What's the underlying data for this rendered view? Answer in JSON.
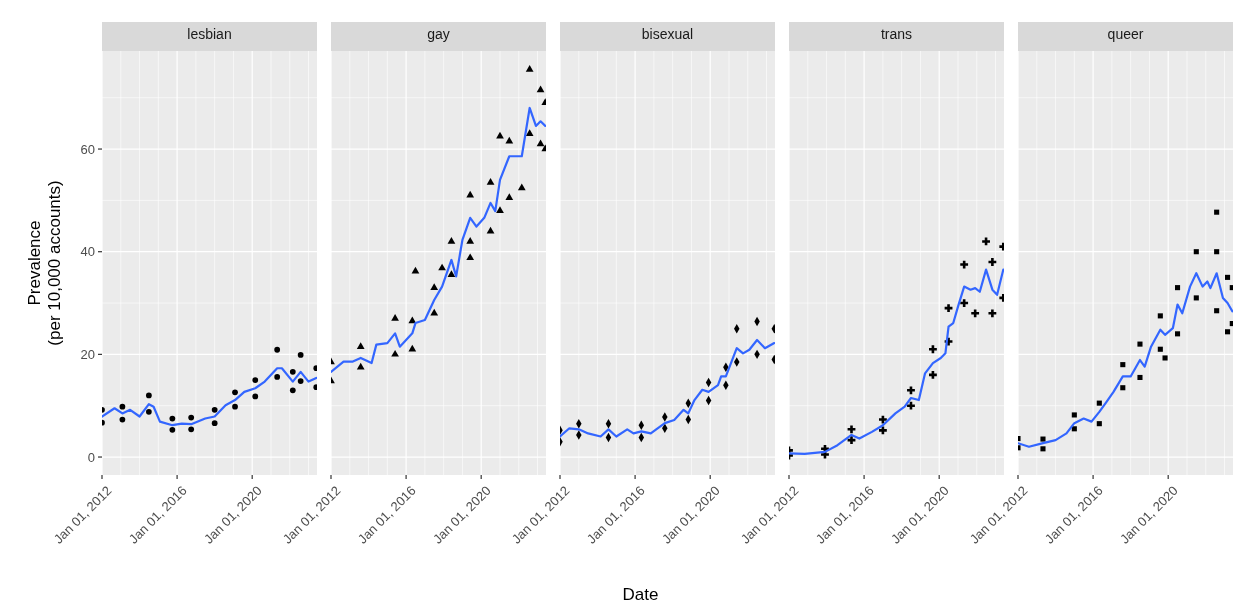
{
  "chart_data": [
    {
      "type": "scatter",
      "title": "lesbian",
      "ylabel": "Prevalence\n(per 10,000 accounts)",
      "grid": true,
      "xlim": [
        "2012-01-01",
        "2023-06-15"
      ],
      "xticks": [
        {
          "value": "2012-01-01",
          "label": "Jan 01, 2012"
        },
        {
          "value": "2013-01-01",
          "label": null
        },
        {
          "value": "2014-01-01",
          "label": null
        },
        {
          "value": "2015-01-01",
          "label": null
        },
        {
          "value": "2016-01-01",
          "label": "Jan 01, 2016"
        },
        {
          "value": "2017-01-01",
          "label": null
        },
        {
          "value": "2018-01-01",
          "label": null
        },
        {
          "value": "2019-01-01",
          "label": null
        },
        {
          "value": "2020-01-01",
          "label": "Jan 01, 2020"
        },
        {
          "value": "2021-01-01",
          "label": null
        },
        {
          "value": "2022-01-01",
          "label": null
        },
        {
          "value": "2023-01-01",
          "label": null
        }
      ],
      "ylim": [
        -3.5,
        79.1
      ],
      "yticks": [
        0,
        {
          "value": 10,
          "label": null
        },
        20,
        {
          "value": 30,
          "label": null
        },
        40,
        {
          "value": 50,
          "label": null
        },
        60,
        {
          "value": 70,
          "label": null
        }
      ],
      "series": [
        {
          "type": "scatter",
          "marker": "circle",
          "color": "#000000",
          "x": [
            "2012-01",
            "2012-01",
            "2013-02",
            "2013-02",
            "2014-07",
            "2014-07",
            "2015-10",
            "2015-10",
            "2016-10",
            "2016-10",
            "2018-01",
            "2018-01",
            "2019-02",
            "2019-02",
            "2020-03",
            "2020-03",
            "2021-05",
            "2021-05",
            "2022-03",
            "2022-03",
            "2022-08",
            "2022-08",
            "2023-06",
            "2023-06"
          ],
          "values": [
            9.2,
            6.7,
            9.8,
            7.3,
            12.0,
            8.8,
            7.5,
            5.3,
            7.7,
            5.4,
            9.2,
            6.6,
            12.6,
            9.8,
            15.0,
            11.8,
            20.9,
            15.6,
            16.6,
            13.0,
            19.9,
            14.8,
            17.3,
            13.6
          ]
        },
        {
          "type": "line",
          "color": "#3366ff",
          "x": [
            "2012-01",
            "2012-09",
            "2013-02",
            "2013-07",
            "2014-01",
            "2014-07",
            "2014-10",
            "2015-02",
            "2015-10",
            "2016-04",
            "2016-10",
            "2017-07",
            "2018-01",
            "2018-08",
            "2019-02",
            "2019-08",
            "2020-03",
            "2020-09",
            "2021-05",
            "2021-08",
            "2022-03",
            "2022-08",
            "2023-01",
            "2023-06"
          ],
          "values": [
            7.9,
            9.5,
            8.5,
            9.2,
            7.9,
            10.3,
            9.8,
            6.9,
            6.2,
            6.5,
            6.4,
            7.5,
            7.9,
            10.1,
            11.1,
            12.7,
            13.4,
            14.7,
            17.3,
            17.3,
            14.7,
            16.6,
            14.7,
            15.4
          ]
        }
      ]
    },
    {
      "type": "scatter",
      "title": "gay",
      "grid": true,
      "tick_labels": "x",
      "xlim": [
        "2012-01-01",
        "2023-06-15"
      ],
      "xticks": [
        {
          "value": "2012-01-01",
          "label": "Jan 01, 2012"
        },
        {
          "value": "2013-01-01",
          "label": null
        },
        {
          "value": "2014-01-01",
          "label": null
        },
        {
          "value": "2015-01-01",
          "label": null
        },
        {
          "value": "2016-01-01",
          "label": "Jan 01, 2016"
        },
        {
          "value": "2017-01-01",
          "label": null
        },
        {
          "value": "2018-01-01",
          "label": null
        },
        {
          "value": "2019-01-01",
          "label": null
        },
        {
          "value": "2020-01-01",
          "label": "Jan 01, 2020"
        },
        {
          "value": "2021-01-01",
          "label": null
        },
        {
          "value": "2022-01-01",
          "label": null
        },
        {
          "value": "2023-01-01",
          "label": null
        }
      ],
      "ylim": [
        -3.5,
        79.1
      ],
      "yticks": [
        0,
        {
          "value": 10,
          "label": null
        },
        20,
        {
          "value": 30,
          "label": null
        },
        40,
        {
          "value": 50,
          "label": null
        },
        60,
        {
          "value": 70,
          "label": null
        }
      ],
      "series": [
        {
          "type": "scatter",
          "marker": "triangle",
          "color": "#000000",
          "x": [
            "2012-01",
            "2012-01",
            "2013-08",
            "2013-08",
            "2015-06",
            "2015-06",
            "2016-05",
            "2016-05",
            "2016-07",
            "2017-07",
            "2017-07",
            "2017-12",
            "2018-06",
            "2018-06",
            "2019-06",
            "2019-06",
            "2019-06",
            "2020-07",
            "2020-07",
            "2021-01",
            "2021-01",
            "2021-07",
            "2021-07",
            "2022-03",
            "2022-08",
            "2022-08",
            "2023-03",
            "2023-03",
            "2023-06",
            "2023-06"
          ],
          "values": [
            18.5,
            14.8,
            21.5,
            17.5,
            27.0,
            20.0,
            26.5,
            21.0,
            36.2,
            33.0,
            28.0,
            36.8,
            42.0,
            35.5,
            51.0,
            42.0,
            38.8,
            53.5,
            44.0,
            62.5,
            48.0,
            61.5,
            50.5,
            52.4,
            75.5,
            63.0,
            71.5,
            61.0,
            69.0,
            60.0
          ]
        },
        {
          "type": "line",
          "color": "#3366ff",
          "x": [
            "2012-01",
            "2012-09",
            "2013-03",
            "2013-08",
            "2014-03",
            "2014-06",
            "2015-01",
            "2015-06",
            "2015-09",
            "2016-05",
            "2016-07",
            "2017-01",
            "2017-07",
            "2017-12",
            "2018-06",
            "2018-09",
            "2019-01",
            "2019-06",
            "2019-10",
            "2020-03",
            "2020-07",
            "2020-10",
            "2021-01",
            "2021-07",
            "2022-03",
            "2022-08",
            "2022-12",
            "2023-03",
            "2023-06"
          ],
          "values": [
            16.6,
            18.6,
            18.6,
            19.3,
            18.3,
            21.9,
            22.2,
            24.1,
            21.5,
            24.1,
            26.1,
            26.7,
            30.6,
            33.2,
            38.4,
            35.2,
            42.3,
            46.6,
            44.9,
            46.6,
            49.5,
            47.9,
            54.0,
            58.6,
            58.6,
            68.0,
            64.5,
            65.4,
            64.5
          ]
        }
      ]
    },
    {
      "type": "scatter",
      "title": "bisexual",
      "xlabel": "Date",
      "grid": true,
      "tick_labels": "x",
      "xlim": [
        "2012-01-01",
        "2023-06-15"
      ],
      "xticks": [
        {
          "value": "2012-01-01",
          "label": "Jan 01, 2012"
        },
        {
          "value": "2013-01-01",
          "label": null
        },
        {
          "value": "2014-01-01",
          "label": null
        },
        {
          "value": "2015-01-01",
          "label": null
        },
        {
          "value": "2016-01-01",
          "label": "Jan 01, 2016"
        },
        {
          "value": "2017-01-01",
          "label": null
        },
        {
          "value": "2018-01-01",
          "label": null
        },
        {
          "value": "2019-01-01",
          "label": null
        },
        {
          "value": "2020-01-01",
          "label": "Jan 01, 2020"
        },
        {
          "value": "2021-01-01",
          "label": null
        },
        {
          "value": "2022-01-01",
          "label": null
        },
        {
          "value": "2023-01-01",
          "label": null
        }
      ],
      "ylim": [
        -3.5,
        79.1
      ],
      "yticks": [
        0,
        {
          "value": 10,
          "label": null
        },
        20,
        {
          "value": 30,
          "label": null
        },
        40,
        {
          "value": 50,
          "label": null
        },
        60,
        {
          "value": 70,
          "label": null
        }
      ],
      "series": [
        {
          "type": "scatter",
          "marker": "diamond",
          "color": "#000000",
          "x": [
            "2012-01",
            "2012-01",
            "2013-01",
            "2013-01",
            "2014-08",
            "2014-08",
            "2016-05",
            "2016-05",
            "2017-08",
            "2017-08",
            "2018-11",
            "2018-11",
            "2019-12",
            "2019-12",
            "2020-11",
            "2020-11",
            "2021-06",
            "2021-06",
            "2022-07",
            "2022-07",
            "2023-06",
            "2023-06"
          ],
          "values": [
            5.2,
            3.0,
            6.5,
            4.3,
            6.5,
            3.8,
            6.2,
            3.8,
            7.8,
            5.6,
            10.5,
            7.3,
            14.5,
            11.0,
            17.5,
            14.0,
            25.0,
            18.5,
            26.4,
            20.0,
            25.0,
            19.0
          ]
        },
        {
          "type": "line",
          "color": "#3366ff",
          "x": [
            "2012-01",
            "2012-07",
            "2013-01",
            "2013-07",
            "2014-03",
            "2014-08",
            "2015-01",
            "2015-08",
            "2015-12",
            "2016-05",
            "2016-11",
            "2017-08",
            "2018-02",
            "2018-08",
            "2018-11",
            "2019-03",
            "2019-08",
            "2019-12",
            "2020-06",
            "2020-08",
            "2020-11",
            "2021-06",
            "2021-10",
            "2022-02",
            "2022-07",
            "2022-12",
            "2023-06"
          ],
          "values": [
            4.0,
            5.6,
            5.4,
            4.6,
            4.0,
            5.4,
            4.0,
            5.4,
            4.6,
            5.0,
            4.6,
            6.6,
            7.2,
            9.2,
            8.5,
            11.1,
            13.1,
            12.7,
            14.0,
            15.7,
            15.7,
            21.2,
            20.2,
            20.9,
            22.8,
            21.2,
            22.2
          ]
        }
      ]
    },
    {
      "type": "scatter",
      "title": "trans",
      "grid": true,
      "tick_labels": "x",
      "xlim": [
        "2012-01-01",
        "2023-06-15"
      ],
      "xticks": [
        {
          "value": "2012-01-01",
          "label": "Jan 01, 2012"
        },
        {
          "value": "2013-01-01",
          "label": null
        },
        {
          "value": "2014-01-01",
          "label": null
        },
        {
          "value": "2015-01-01",
          "label": null
        },
        {
          "value": "2016-01-01",
          "label": "Jan 01, 2016"
        },
        {
          "value": "2017-01-01",
          "label": null
        },
        {
          "value": "2018-01-01",
          "label": null
        },
        {
          "value": "2019-01-01",
          "label": null
        },
        {
          "value": "2020-01-01",
          "label": "Jan 01, 2020"
        },
        {
          "value": "2021-01-01",
          "label": null
        },
        {
          "value": "2022-01-01",
          "label": null
        },
        {
          "value": "2023-01-01",
          "label": null
        }
      ],
      "ylim": [
        -3.5,
        79.1
      ],
      "yticks": [
        0,
        {
          "value": 10,
          "label": null
        },
        20,
        {
          "value": 30,
          "label": null
        },
        40,
        {
          "value": 50,
          "label": null
        },
        60,
        {
          "value": 70,
          "label": null
        }
      ],
      "series": [
        {
          "type": "scatter",
          "marker": "cross",
          "color": "#000000",
          "x": [
            "2012-01",
            "2012-01",
            "2013-12",
            "2013-12",
            "2015-05",
            "2015-05",
            "2017-01",
            "2017-01",
            "2018-07",
            "2018-07",
            "2019-09",
            "2019-09",
            "2020-07",
            "2020-07",
            "2021-05",
            "2021-05",
            "2021-12",
            "2022-07",
            "2022-11",
            "2022-11",
            "2023-06",
            "2023-06"
          ],
          "values": [
            1.3,
            0.3,
            1.6,
            0.5,
            5.4,
            3.3,
            7.3,
            5.2,
            13.0,
            10.0,
            21.0,
            16.0,
            29.0,
            22.5,
            37.5,
            30.0,
            28.0,
            42.0,
            38.0,
            28.0,
            41.0,
            31.0
          ]
        },
        {
          "type": "line",
          "color": "#3366ff",
          "x": [
            "2012-01",
            "2012-11",
            "2013-12",
            "2014-08",
            "2015-05",
            "2015-10",
            "2016-06",
            "2017-01",
            "2017-09",
            "2018-03",
            "2018-07",
            "2018-12",
            "2019-04",
            "2019-09",
            "2020-02",
            "2020-05",
            "2020-07",
            "2020-10",
            "2021-01",
            "2021-05",
            "2021-09",
            "2021-12",
            "2022-03",
            "2022-07",
            "2022-11",
            "2023-02",
            "2023-06"
          ],
          "values": [
            0.7,
            0.6,
            1.0,
            2.3,
            4.3,
            3.6,
            4.9,
            6.2,
            8.5,
            9.8,
            11.5,
            11.1,
            16.3,
            18.3,
            19.3,
            20.2,
            25.4,
            26.1,
            29.3,
            33.2,
            32.6,
            32.9,
            32.2,
            36.5,
            32.6,
            31.6,
            36.5
          ]
        }
      ]
    },
    {
      "type": "scatter",
      "title": "queer",
      "grid": true,
      "tick_labels": "x",
      "xlim": [
        "2012-01-01",
        "2023-06-15"
      ],
      "xticks": [
        {
          "value": "2012-01-01",
          "label": "Jan 01, 2012"
        },
        {
          "value": "2013-01-01",
          "label": null
        },
        {
          "value": "2014-01-01",
          "label": null
        },
        {
          "value": "2015-01-01",
          "label": null
        },
        {
          "value": "2016-01-01",
          "label": "Jan 01, 2016"
        },
        {
          "value": "2017-01-01",
          "label": null
        },
        {
          "value": "2018-01-01",
          "label": null
        },
        {
          "value": "2019-01-01",
          "label": null
        },
        {
          "value": "2020-01-01",
          "label": "Jan 01, 2020"
        },
        {
          "value": "2021-01-01",
          "label": null
        },
        {
          "value": "2022-01-01",
          "label": null
        },
        {
          "value": "2023-01-01",
          "label": null
        }
      ],
      "ylim": [
        -3.5,
        79.1
      ],
      "yticks": [
        0,
        {
          "value": 10,
          "label": null
        },
        20,
        {
          "value": 30,
          "label": null
        },
        40,
        {
          "value": 50,
          "label": null
        },
        60,
        {
          "value": 70,
          "label": null
        }
      ],
      "series": [
        {
          "type": "scatter",
          "marker": "square",
          "color": "#000000",
          "x": [
            "2012-01",
            "2012-01",
            "2013-05",
            "2013-05",
            "2015-01",
            "2015-01",
            "2016-05",
            "2016-05",
            "2017-08",
            "2017-08",
            "2018-07",
            "2018-07",
            "2019-08",
            "2019-08",
            "2019-11",
            "2020-07",
            "2020-07",
            "2021-07",
            "2021-07",
            "2022-08",
            "2022-08",
            "2022-08",
            "2023-03",
            "2023-03",
            "2023-06",
            "2023-06"
          ],
          "values": [
            3.6,
            1.8,
            3.5,
            1.6,
            8.2,
            5.5,
            10.5,
            6.5,
            18.0,
            13.5,
            22.0,
            15.5,
            27.5,
            21.0,
            19.3,
            33.0,
            24.0,
            40.0,
            31.0,
            47.7,
            40.0,
            28.5,
            35.0,
            24.4,
            33.0,
            26.0
          ]
        },
        {
          "type": "line",
          "color": "#3366ff",
          "x": [
            "2012-01",
            "2012-08",
            "2013-05",
            "2014-01",
            "2014-08",
            "2015-01",
            "2015-07",
            "2015-12",
            "2016-05",
            "2016-09",
            "2017-02",
            "2017-08",
            "2018-01",
            "2018-07",
            "2018-10",
            "2019-02",
            "2019-08",
            "2019-11",
            "2020-04",
            "2020-07",
            "2020-10",
            "2021-03",
            "2021-07",
            "2021-11",
            "2022-02",
            "2022-04",
            "2022-08",
            "2022-12",
            "2023-03",
            "2023-06"
          ],
          "values": [
            2.7,
            2.0,
            2.7,
            3.3,
            4.6,
            6.6,
            7.5,
            6.9,
            8.8,
            10.5,
            12.7,
            15.7,
            15.7,
            18.9,
            17.6,
            21.5,
            24.8,
            23.8,
            25.1,
            29.7,
            28.0,
            33.2,
            35.8,
            33.2,
            34.2,
            32.9,
            35.8,
            31.0,
            30.0,
            28.4
          ]
        }
      ]
    }
  ]
}
